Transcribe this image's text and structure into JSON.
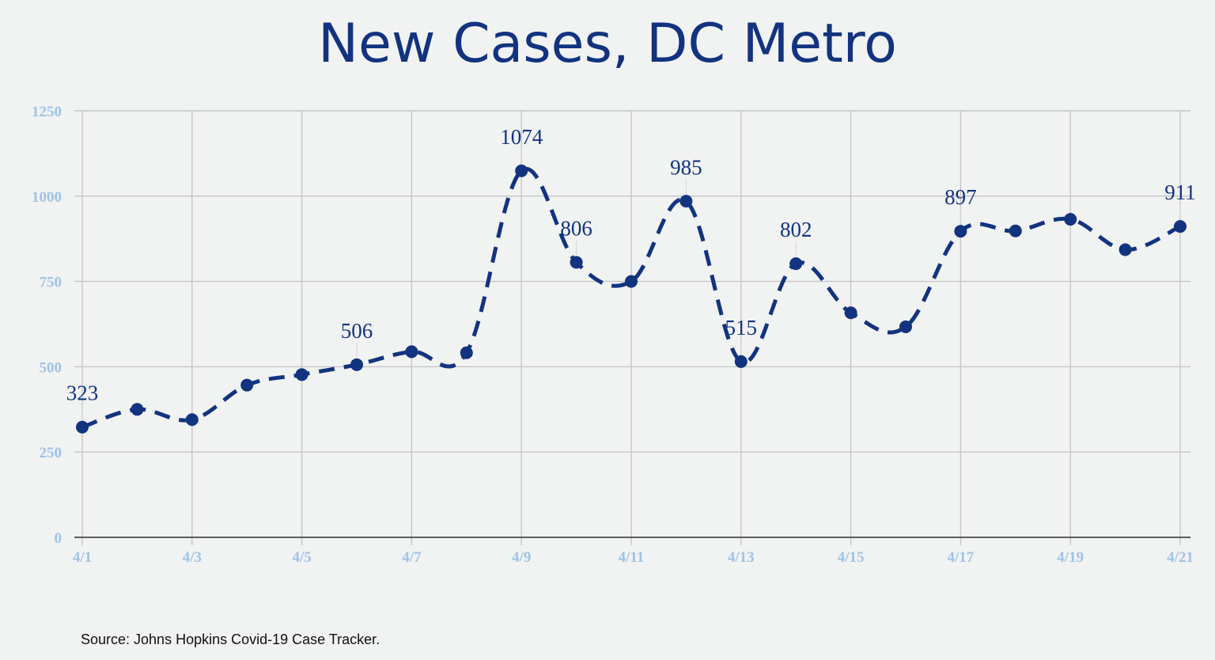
{
  "chart_data": {
    "type": "line",
    "title": "New Cases, DC Metro",
    "source": "Source: Johns Hopkins Covid-19 Case Tracker.",
    "xlabel": "",
    "ylabel": "",
    "x": [
      "4/1",
      "4/2",
      "4/3",
      "4/4",
      "4/5",
      "4/6",
      "4/7",
      "4/8",
      "4/9",
      "4/10",
      "4/11",
      "4/12",
      "4/13",
      "4/14",
      "4/15",
      "4/16",
      "4/17",
      "4/18",
      "4/19",
      "4/20",
      "4/21"
    ],
    "x_tick_labels": [
      "4/1",
      "4/3",
      "4/5",
      "4/7",
      "4/9",
      "4/11",
      "4/13",
      "4/15",
      "4/17",
      "4/19",
      "4/21"
    ],
    "values": [
      323,
      375,
      345,
      446,
      477,
      506,
      544,
      541,
      1074,
      806,
      750,
      985,
      515,
      802,
      658,
      617,
      897,
      898,
      932,
      843,
      911
    ],
    "labeled_points": [
      {
        "x": "4/1",
        "label": "323"
      },
      {
        "x": "4/6",
        "label": "506"
      },
      {
        "x": "4/9",
        "label": "1074"
      },
      {
        "x": "4/10",
        "label": "806"
      },
      {
        "x": "4/12",
        "label": "985"
      },
      {
        "x": "4/13",
        "label": "515"
      },
      {
        "x": "4/14",
        "label": "802"
      },
      {
        "x": "4/17",
        "label": "897"
      },
      {
        "x": "4/21",
        "label": "911"
      }
    ],
    "ylim": [
      0,
      1250
    ],
    "y_ticks": [
      "0",
      "250",
      "500",
      "750",
      "1000",
      "1250"
    ],
    "grid": true,
    "line_style": "dashed",
    "colors": {
      "line": "#12337f",
      "marker": "#12337f",
      "tick_labels": "#9ec3e6",
      "grid": "#c6c6c6",
      "background": "#f1f2f2"
    }
  }
}
